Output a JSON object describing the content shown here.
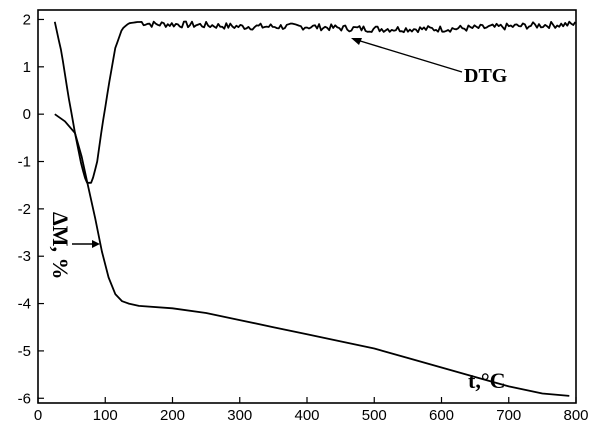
{
  "chart_data": {
    "type": "line",
    "title": "",
    "xlabel": "t,°C",
    "ylabel": "ΔM, %",
    "xlim": [
      0,
      800
    ],
    "ylim": [
      -6.1,
      2.2
    ],
    "xticks": [
      "0",
      "100",
      "200",
      "300",
      "400",
      "500",
      "600",
      "700",
      "800"
    ],
    "yticks": [
      "2",
      "1",
      "0",
      "-1",
      "-2",
      "-3",
      "-4",
      "-5",
      "-6"
    ],
    "grid": false,
    "legend": "none",
    "annotations": [
      {
        "text": "DTG",
        "points_to_series": "DTG"
      }
    ],
    "series": [
      {
        "name": "DTG",
        "x": [
          25,
          35,
          45,
          55,
          65,
          72,
          80,
          88,
          95,
          105,
          115,
          125,
          135,
          150,
          170,
          200,
          250,
          300,
          350,
          400,
          450,
          500,
          550,
          600,
          650,
          700,
          750,
          800
        ],
        "y": [
          1.95,
          1.3,
          0.4,
          -0.4,
          -1.1,
          -1.45,
          -1.45,
          -1.0,
          -0.3,
          0.6,
          1.4,
          1.8,
          1.92,
          1.95,
          1.9,
          1.9,
          1.88,
          1.85,
          1.85,
          1.85,
          1.82,
          1.8,
          1.8,
          1.8,
          1.82,
          1.85,
          1.88,
          1.9
        ],
        "noisy": true
      },
      {
        "name": "ΔM",
        "x": [
          25,
          40,
          55,
          65,
          75,
          85,
          95,
          105,
          115,
          125,
          135,
          150,
          200,
          250,
          300,
          350,
          400,
          450,
          500,
          550,
          600,
          650,
          700,
          750,
          790
        ],
        "y": [
          0.0,
          -0.15,
          -0.4,
          -0.9,
          -1.55,
          -2.2,
          -2.9,
          -3.45,
          -3.8,
          -3.95,
          -4.0,
          -4.05,
          -4.1,
          -4.2,
          -4.35,
          -4.5,
          -4.65,
          -4.8,
          -4.95,
          -5.15,
          -5.35,
          -5.55,
          -5.75,
          -5.9,
          -5.95
        ]
      }
    ]
  }
}
